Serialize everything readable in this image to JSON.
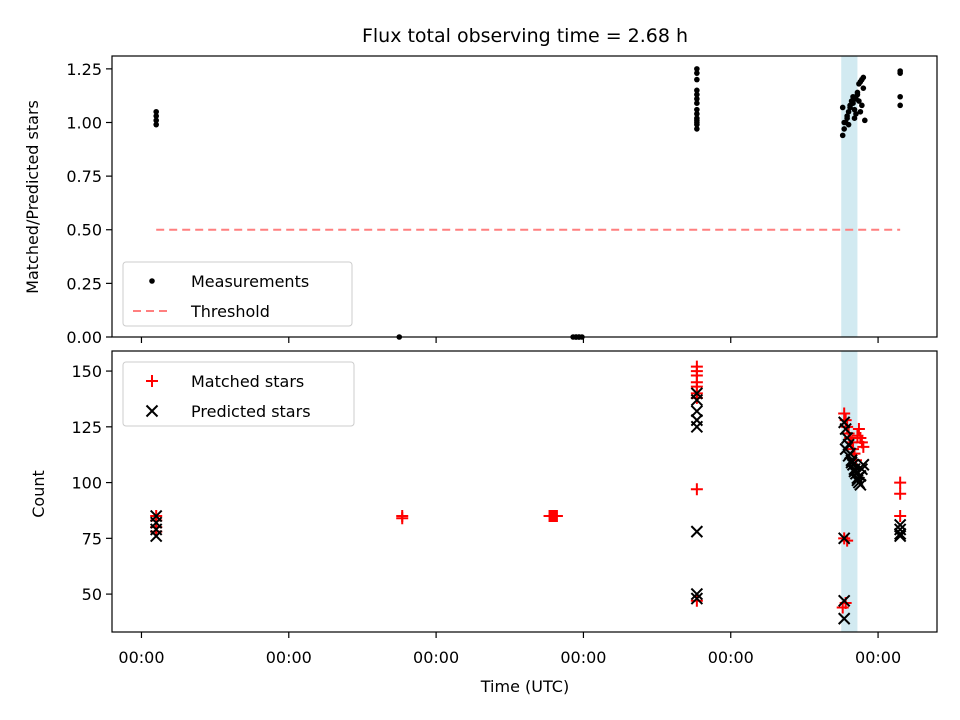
{
  "chart_data": [
    {
      "type": "scatter",
      "panel": "top",
      "title": "Flux total observing time = 2.68 h",
      "ylabel": "Matched/Predicted stars",
      "xlabel": "",
      "ylim": [
        0,
        1.31
      ],
      "yticks": [
        0.0,
        0.25,
        0.5,
        0.75,
        1.0,
        1.25
      ],
      "ytick_labels": [
        "0.00",
        "0.25",
        "0.50",
        "0.75",
        "1.00",
        "1.25"
      ],
      "xticks": [
        0,
        1,
        2,
        3,
        4,
        5
      ],
      "xtick_labels": [
        "",
        "",
        "",
        "",
        "",
        ""
      ],
      "xlim": [
        -0.2,
        5.4
      ],
      "grid": false,
      "legend_placement": "lower-left",
      "shaded_span": {
        "x": [
          4.75,
          4.86
        ],
        "color": "#add8e6"
      },
      "series": [
        {
          "name": "Measurements",
          "marker": "dot",
          "color": "#000000",
          "x": [
            0.1,
            0.1,
            0.1,
            0.1,
            2.95,
            2.97,
            1.75,
            2.93,
            2.95,
            2.97,
            2.99,
            3.77,
            3.77,
            3.77,
            3.77,
            3.77,
            3.77,
            3.77,
            3.77,
            3.77,
            3.77,
            3.77,
            3.77,
            3.77,
            3.77,
            4.76,
            4.77,
            4.78,
            4.79,
            4.8,
            4.81,
            4.82,
            4.83,
            4.84,
            4.85,
            4.86,
            4.87,
            4.88,
            4.89,
            4.9,
            4.77,
            4.79,
            4.81,
            4.83,
            4.85,
            4.87,
            4.89,
            4.76,
            4.8,
            4.84,
            4.88,
            4.91,
            4.9,
            4.86,
            5.15,
            5.15,
            5.15,
            5.15
          ],
          "y": [
            1.05,
            1.03,
            1.01,
            0.99,
            0.0,
            0.0,
            0.0,
            0.0,
            0.0,
            0.0,
            0.0,
            1.25,
            1.23,
            1.2,
            1.15,
            1.13,
            1.11,
            1.09,
            1.06,
            1.04,
            1.01,
            0.99,
            0.97,
            1.0,
            1.02,
            0.94,
            0.97,
            1.0,
            1.02,
            1.05,
            1.08,
            1.1,
            1.12,
            1.06,
            1.04,
            1.13,
            1.18,
            1.19,
            1.2,
            1.21,
            1.0,
            1.03,
            1.07,
            1.09,
            1.11,
            1.1,
            1.08,
            1.07,
            0.99,
            1.02,
            1.05,
            1.01,
            1.16,
            1.14,
            1.24,
            1.23,
            1.12,
            1.08
          ]
        },
        {
          "name": "Threshold",
          "marker": "dashed-line",
          "color": "#ff7f7f",
          "x": [
            0.1,
            5.15
          ],
          "y": [
            0.5,
            0.5
          ]
        }
      ]
    },
    {
      "type": "scatter",
      "panel": "bottom",
      "title": "",
      "ylabel": "Count",
      "xlabel": "Time (UTC)",
      "ylim": [
        33,
        159
      ],
      "yticks": [
        50,
        75,
        100,
        125,
        150
      ],
      "ytick_labels": [
        "50",
        "75",
        "100",
        "125",
        "150"
      ],
      "xticks": [
        0,
        1,
        2,
        3,
        4,
        5
      ],
      "xtick_labels": [
        "00:00",
        "00:00",
        "00:00",
        "00:00",
        "00:00",
        "00:00"
      ],
      "xlim": [
        -0.2,
        5.4
      ],
      "grid": false,
      "legend_placement": "top-left",
      "shaded_span": {
        "x": [
          4.75,
          4.86
        ],
        "color": "#add8e6"
      },
      "series": [
        {
          "name": "Matched stars",
          "marker": "plus",
          "color": "#ff0000",
          "x": [
            0.1,
            0.1,
            0.1,
            0.1,
            1.77,
            1.77,
            2.77,
            2.78,
            2.79,
            2.8,
            2.81,
            2.82,
            3.77,
            3.77,
            3.77,
            3.77,
            3.77,
            3.77,
            3.77,
            3.77,
            3.77,
            4.77,
            4.78,
            4.79,
            4.8,
            4.81,
            4.82,
            4.83,
            4.84,
            4.85,
            4.86,
            4.87,
            4.88,
            4.89,
            4.9,
            4.77,
            4.79,
            4.76,
            4.78,
            5.15,
            5.15,
            5.15
          ],
          "y": [
            85,
            83,
            80,
            78,
            85,
            84,
            85,
            85,
            85,
            85,
            85,
            85,
            152,
            150,
            148,
            145,
            143,
            140,
            138,
            97,
            47,
            131,
            128,
            125,
            122,
            120,
            118,
            115,
            113,
            110,
            121,
            124,
            120,
            118,
            116,
            75,
            74,
            44,
            46,
            100,
            95,
            85
          ]
        },
        {
          "name": "Predicted stars",
          "marker": "x",
          "color": "#000000",
          "x": [
            0.1,
            0.1,
            0.1,
            0.1,
            3.77,
            3.77,
            3.77,
            3.77,
            3.77,
            3.77,
            3.77,
            3.77,
            4.77,
            4.78,
            4.79,
            4.8,
            4.81,
            4.82,
            4.83,
            4.84,
            4.85,
            4.86,
            4.87,
            4.88,
            4.89,
            4.9,
            4.78,
            4.8,
            4.82,
            4.84,
            4.86,
            4.88,
            4.77,
            4.77,
            4.77,
            5.15,
            5.15,
            5.15,
            5.15
          ],
          "y": [
            85,
            82,
            79,
            76,
            140,
            137,
            132,
            128,
            125,
            78,
            50,
            48,
            127,
            124,
            120,
            117,
            113,
            110,
            108,
            106,
            104,
            102,
            100,
            103,
            106,
            108,
            115,
            112,
            109,
            105,
            101,
            99,
            75,
            47,
            39,
            81,
            79,
            77,
            76
          ]
        }
      ]
    }
  ]
}
